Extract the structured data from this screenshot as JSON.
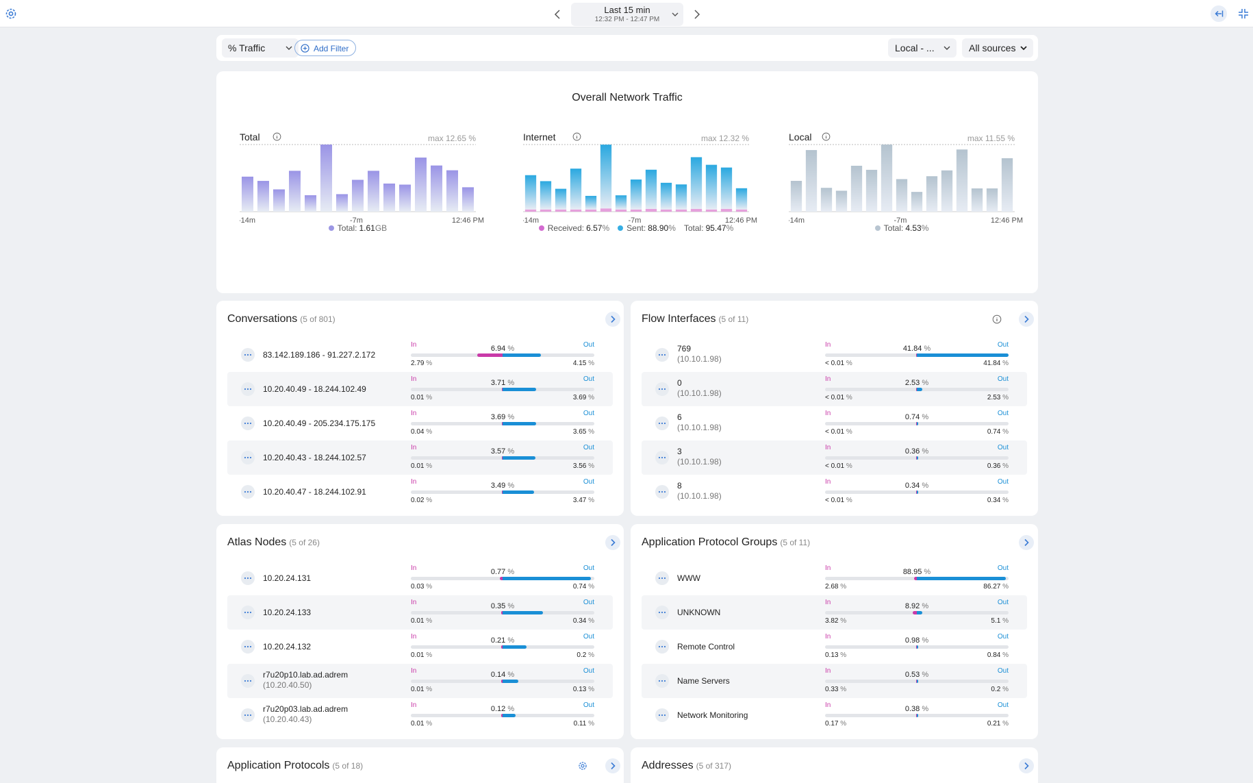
{
  "topbar": {
    "time_title": "Last 15 min",
    "time_range": "12:32 PM - 12:47 PM"
  },
  "filters": {
    "metric": "% Traffic",
    "add_filter": "Add Filter",
    "local": "Local - ...",
    "sources": "All sources"
  },
  "overview": {
    "title": "Overall Network Traffic",
    "charts": [
      {
        "title": "Total",
        "max": "max 12.65 %",
        "ticks": [
          "-14m",
          "-7m",
          "12:46 PM"
        ],
        "legend": [
          {
            "label": "Total:",
            "value": "1.61",
            "unit": "GB",
            "color": "#9c97e4"
          }
        ]
      },
      {
        "title": "Internet",
        "max": "max 12.32 %",
        "ticks": [
          "-14m",
          "-7m",
          "12:46 PM"
        ],
        "legend": [
          {
            "label": "Received:",
            "value": "6.57",
            "unit": "%",
            "color": "#d36bd0"
          },
          {
            "label": "Sent:",
            "value": "88.90",
            "unit": "%",
            "color": "#36aee3"
          },
          {
            "label": "Total:",
            "value": "95.47",
            "unit": "%",
            "color": ""
          }
        ]
      },
      {
        "title": "Local",
        "max": "max 11.55 %",
        "ticks": [
          "-14m",
          "-7m",
          "12:46 PM"
        ],
        "legend": [
          {
            "label": "Total:",
            "value": "4.53",
            "unit": "%",
            "color": "#b8c5d1"
          }
        ]
      }
    ]
  },
  "chart_data": [
    {
      "type": "bar",
      "title": "Total",
      "ylim": [
        0,
        12.65
      ],
      "ylabel": "",
      "xlabel": "",
      "x_ticks": [
        "-14m",
        "-7m",
        "12:46 PM"
      ],
      "values": [
        6.6,
        5.8,
        4.2,
        7.7,
        3.1,
        12.65,
        3.3,
        6.0,
        7.7,
        5.3,
        5.1,
        10.2,
        8.7,
        7.8,
        4.6
      ]
    },
    {
      "type": "bar",
      "title": "Internet",
      "ylim": [
        0,
        12.32
      ],
      "ylabel": "",
      "xlabel": "",
      "x_ticks": [
        "-14m",
        "-7m",
        "12:46 PM"
      ],
      "series": [
        {
          "name": "Received",
          "values": [
            0.4,
            0.4,
            0.4,
            0.4,
            0.4,
            0.6,
            0.4,
            0.4,
            0.5,
            0.4,
            0.4,
            0.5,
            0.4,
            0.5,
            0.4
          ]
        },
        {
          "name": "Sent",
          "values": [
            6.3,
            5.2,
            3.8,
            7.5,
            2.5,
            11.7,
            2.6,
            5.5,
            7.2,
            4.9,
            4.6,
            9.5,
            8.2,
            7.6,
            3.9
          ]
        }
      ]
    },
    {
      "type": "bar",
      "title": "Local",
      "ylim": [
        0,
        11.55
      ],
      "ylabel": "",
      "xlabel": "",
      "x_ticks": [
        "-14m",
        "-7m",
        "12:46 PM"
      ],
      "values": [
        5.3,
        10.6,
        4.1,
        3.6,
        7.9,
        7.2,
        11.55,
        5.6,
        3.4,
        6.1,
        7.1,
        10.7,
        4.0,
        4.0,
        9.2
      ]
    }
  ],
  "panels": {
    "conversations": {
      "title": "Conversations",
      "count": "(5 of 801)",
      "rows": [
        {
          "label": "83.142.189.186 - 91.227.2.172",
          "sub": "",
          "in_label": "In",
          "out_label": "Out",
          "total": "6.94",
          "in": "2.79",
          "out": "4.15",
          "in_frac": 0.279,
          "out_frac": 0.415
        },
        {
          "label": "10.20.40.49 - 18.244.102.49",
          "sub": "",
          "in_label": "In",
          "out_label": "Out",
          "total": "3.71",
          "in": "0.01",
          "out": "3.69",
          "in_frac": 0.001,
          "out_frac": 0.369
        },
        {
          "label": "10.20.40.49 - 205.234.175.175",
          "sub": "",
          "in_label": "In",
          "out_label": "Out",
          "total": "3.69",
          "in": "0.04",
          "out": "3.65",
          "in_frac": 0.004,
          "out_frac": 0.365
        },
        {
          "label": "10.20.40.43 - 18.244.102.57",
          "sub": "",
          "in_label": "In",
          "out_label": "Out",
          "total": "3.57",
          "in": "0.01",
          "out": "3.56",
          "in_frac": 0.001,
          "out_frac": 0.356
        },
        {
          "label": "10.20.40.47 - 18.244.102.91",
          "sub": "",
          "in_label": "In",
          "out_label": "Out",
          "total": "3.49",
          "in": "0.02",
          "out": "3.47",
          "in_frac": 0.002,
          "out_frac": 0.347
        }
      ]
    },
    "flow_interfaces": {
      "title": "Flow Interfaces",
      "count": "(5 of 11)",
      "rows": [
        {
          "label": "769",
          "sub": "(10.10.1.98)",
          "in_label": "In",
          "out_label": "Out",
          "total": "41.84",
          "in": "< 0.01",
          "out": "41.84",
          "in_frac": 0.0,
          "out_frac": 1.0
        },
        {
          "label": "0",
          "sub": "(10.10.1.98)",
          "in_label": "In",
          "out_label": "Out",
          "total": "2.53",
          "in": "< 0.01",
          "out": "2.53",
          "in_frac": 0.0,
          "out_frac": 0.06
        },
        {
          "label": "6",
          "sub": "(10.10.1.98)",
          "in_label": "In",
          "out_label": "Out",
          "total": "0.74",
          "in": "< 0.01",
          "out": "0.74",
          "in_frac": 0.0,
          "out_frac": 0.018
        },
        {
          "label": "3",
          "sub": "(10.10.1.98)",
          "in_label": "In",
          "out_label": "Out",
          "total": "0.36",
          "in": "< 0.01",
          "out": "0.36",
          "in_frac": 0.0,
          "out_frac": 0.009
        },
        {
          "label": "8",
          "sub": "(10.10.1.98)",
          "in_label": "In",
          "out_label": "Out",
          "total": "0.34",
          "in": "< 0.01",
          "out": "0.34",
          "in_frac": 0.0,
          "out_frac": 0.008
        }
      ]
    },
    "atlas_nodes": {
      "title": "Atlas Nodes",
      "count": "(5 of 26)",
      "rows": [
        {
          "label": "10.20.24.131",
          "sub": "",
          "in_label": "In",
          "out_label": "Out",
          "total": "0.77",
          "in": "0.03",
          "out": "0.74",
          "in_frac": 0.03,
          "out_frac": 0.96
        },
        {
          "label": "10.20.24.133",
          "sub": "",
          "in_label": "In",
          "out_label": "Out",
          "total": "0.35",
          "in": "0.01",
          "out": "0.34",
          "in_frac": 0.013,
          "out_frac": 0.44
        },
        {
          "label": "10.20.24.132",
          "sub": "",
          "in_label": "In",
          "out_label": "Out",
          "total": "0.21",
          "in": "0.01",
          "out": "0.2",
          "in_frac": 0.013,
          "out_frac": 0.26
        },
        {
          "label": "r7u20p10.lab.ad.adrem",
          "sub": "(10.20.40.50)",
          "in_label": "In",
          "out_label": "Out",
          "total": "0.14",
          "in": "0.01",
          "out": "0.13",
          "in_frac": 0.013,
          "out_frac": 0.17
        },
        {
          "label": "r7u20p03.lab.ad.adrem",
          "sub": "(10.20.40.43)",
          "in_label": "In",
          "out_label": "Out",
          "total": "0.12",
          "in": "0.01",
          "out": "0.11",
          "in_frac": 0.013,
          "out_frac": 0.14
        }
      ]
    },
    "app_protocol_groups": {
      "title": "Application Protocol Groups",
      "count": "(5 of 11)",
      "rows": [
        {
          "label": "WWW",
          "sub": "",
          "in_label": "In",
          "out_label": "Out",
          "total": "88.95",
          "in": "2.68",
          "out": "86.27",
          "in_frac": 0.03,
          "out_frac": 0.97
        },
        {
          "label": "UNKNOWN",
          "sub": "",
          "in_label": "In",
          "out_label": "Out",
          "total": "8.92",
          "in": "3.82",
          "out": "5.1",
          "in_frac": 0.043,
          "out_frac": 0.057
        },
        {
          "label": "Remote Control",
          "sub": "",
          "in_label": "In",
          "out_label": "Out",
          "total": "0.98",
          "in": "0.13",
          "out": "0.84",
          "in_frac": 0.0015,
          "out_frac": 0.0094
        },
        {
          "label": "Name Servers",
          "sub": "",
          "in_label": "In",
          "out_label": "Out",
          "total": "0.53",
          "in": "0.33",
          "out": "0.2",
          "in_frac": 0.0037,
          "out_frac": 0.0022
        },
        {
          "label": "Network Monitoring",
          "sub": "",
          "in_label": "In",
          "out_label": "Out",
          "total": "0.38",
          "in": "0.17",
          "out": "0.21",
          "in_frac": 0.0019,
          "out_frac": 0.0024
        }
      ]
    },
    "app_protocols": {
      "title": "Application Protocols",
      "count": "(5 of 18)"
    },
    "addresses": {
      "title": "Addresses",
      "count": "(5 of 317)"
    }
  },
  "colors": {
    "in": "#c93aa8",
    "out": "#1a8fd6",
    "accent": "#2e6dc8"
  }
}
